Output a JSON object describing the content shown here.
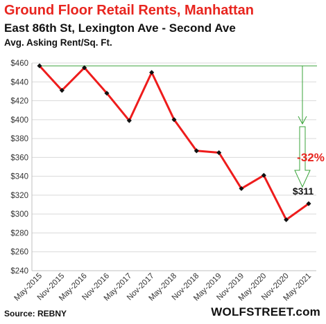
{
  "header": {
    "title": "Ground  Floor Retail Rents, Manhattan",
    "subtitle": "East 86th St, Lexington Ave - Second Ave",
    "subtitle2": "Avg. Asking Rent/Sq. Ft."
  },
  "footer": {
    "source": "Source: REBNY",
    "brand": "WOLFSTREET.com"
  },
  "chart_data": {
    "type": "line",
    "categories": [
      "May-2015",
      "Nov-2015",
      "May-2016",
      "Nov-2016",
      "May-2017",
      "Nov-2017",
      "May-2018",
      "Nov-2018",
      "May-2019",
      "Nov-2019",
      "May-2020",
      "Nov-2020",
      "May-2021"
    ],
    "values": [
      457,
      431,
      455,
      428,
      399,
      450,
      400,
      367,
      365,
      327,
      341,
      294,
      311
    ],
    "yticks": [
      "$460",
      "$440",
      "$420",
      "$400",
      "$380",
      "$360",
      "$340",
      "$320",
      "$300",
      "$280",
      "$260",
      "$240"
    ],
    "ylim": [
      240,
      460
    ],
    "grid": "horizontal",
    "annotations": {
      "last_value_label": "$311",
      "change_label": "-32%"
    },
    "colors": {
      "line": "#ee1c1c",
      "reference": "#3aa33a",
      "annotation": "#e8251f",
      "grid": "#d9d9d9"
    }
  }
}
